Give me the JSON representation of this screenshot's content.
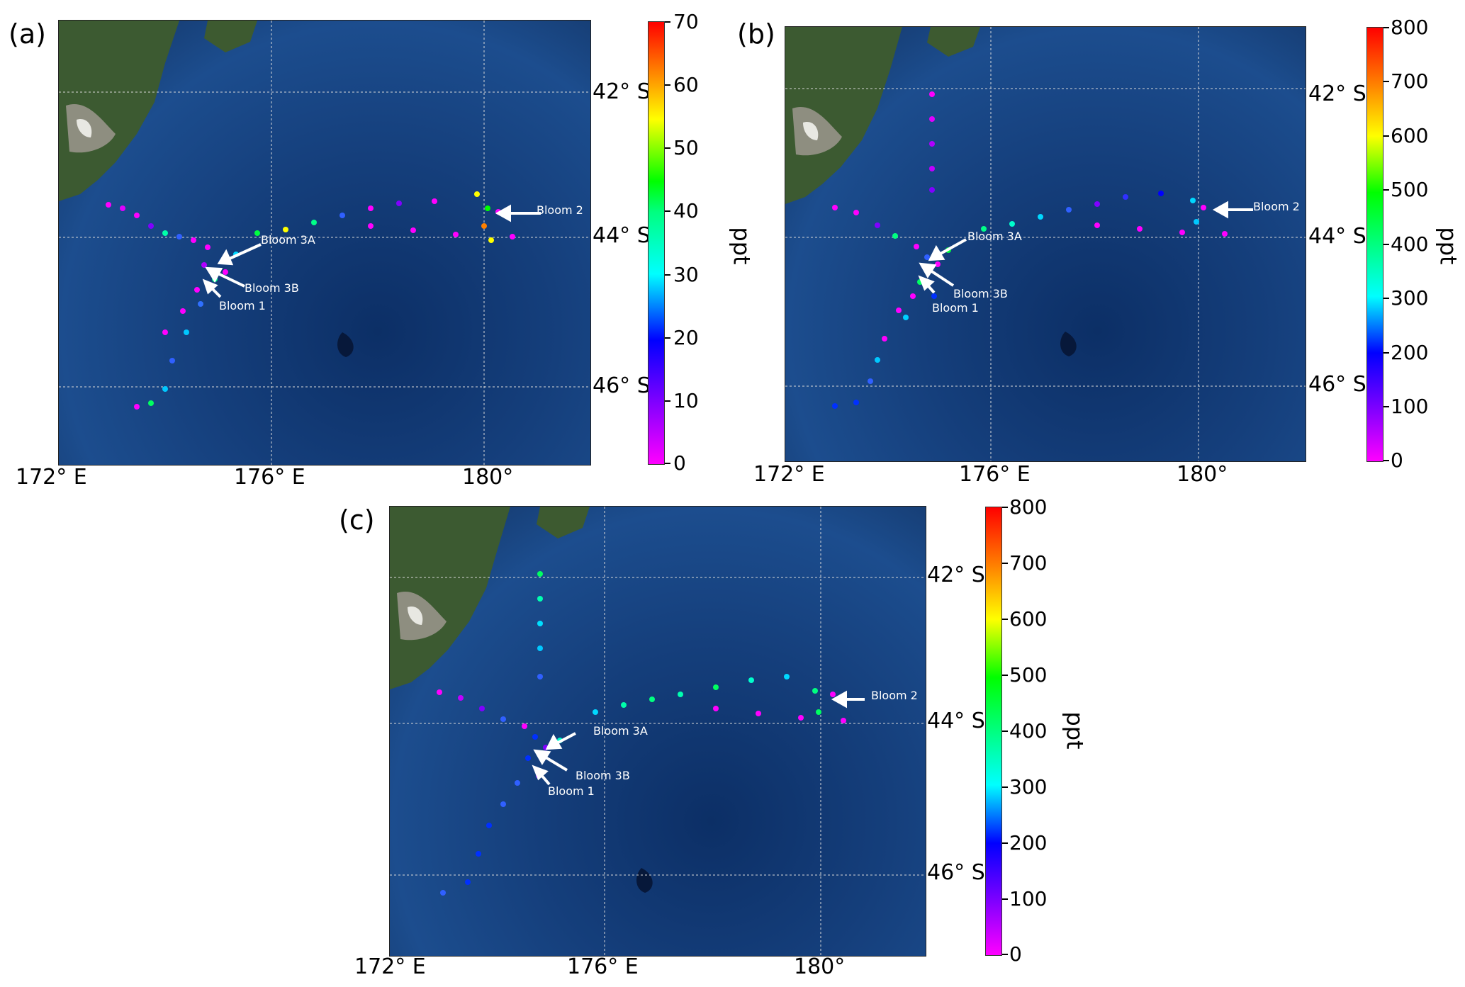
{
  "panels": [
    {
      "label": "(a)",
      "x_ticks": [
        "172° E",
        "176° E",
        "180°"
      ],
      "y_ticks": [
        "42° S",
        "44° S",
        "46° S"
      ],
      "colorbar": {
        "title": "ppt",
        "ticks": [
          "70",
          "60",
          "50",
          "40",
          "30",
          "20",
          "10",
          "0"
        ],
        "min": 0,
        "max": 70
      },
      "annotations": [
        "Bloom 2",
        "Bloom 3A",
        "Bloom 3B",
        "Bloom 1"
      ]
    },
    {
      "label": "(b)",
      "x_ticks": [
        "172° E",
        "176° E",
        "180°"
      ],
      "y_ticks": [
        "42° S",
        "44° S",
        "46° S"
      ],
      "colorbar": {
        "title": "ppt",
        "ticks": [
          "800",
          "700",
          "600",
          "500",
          "400",
          "300",
          "200",
          "100",
          "0"
        ],
        "min": 0,
        "max": 800
      },
      "annotations": [
        "Bloom 2",
        "Bloom 3A",
        "Bloom 3B",
        "Bloom 1"
      ]
    },
    {
      "label": "(c)",
      "x_ticks": [
        "172° E",
        "176° E",
        "180°"
      ],
      "y_ticks": [
        "42° S",
        "44° S",
        "46° S"
      ],
      "colorbar": {
        "title": "ppt",
        "ticks": [
          "800",
          "700",
          "600",
          "500",
          "400",
          "300",
          "200",
          "100",
          "0"
        ],
        "min": 0,
        "max": 800
      },
      "annotations": [
        "Bloom 2",
        "Bloom 3A",
        "Bloom 3B",
        "Bloom 1"
      ]
    }
  ]
}
